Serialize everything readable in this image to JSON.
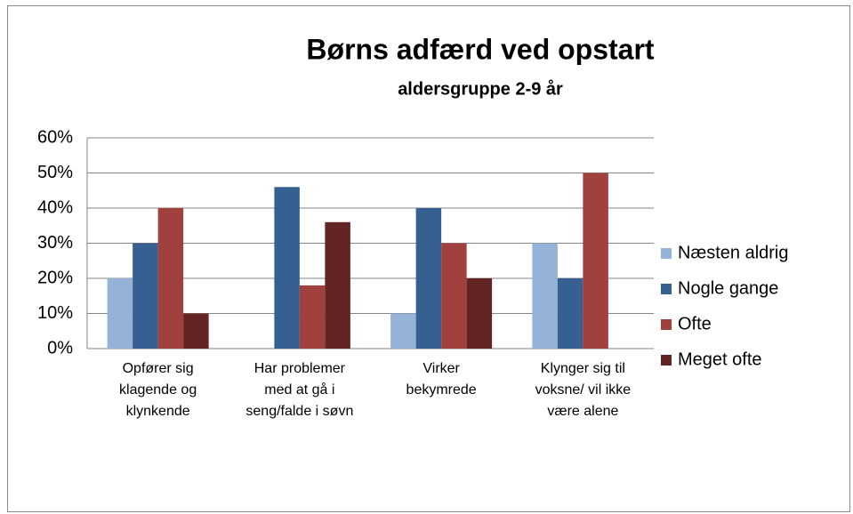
{
  "chart_data": {
    "type": "bar",
    "title": "Børns adfærd ved opstart",
    "subtitle": "aldersgruppe 2-9 år",
    "categories": [
      "Opfører sig klagende og klynkende",
      "Har problemer med at gå i seng/falde i søvn",
      "Virker bekymrede",
      "Klynger sig til voksne/ vil ikke være alene"
    ],
    "series": [
      {
        "name": "Næsten aldrig",
        "color": "#95b3d7",
        "values": [
          20,
          0,
          10,
          30
        ]
      },
      {
        "name": "Nogle gange",
        "color": "#376092",
        "values": [
          30,
          46,
          40,
          20
        ]
      },
      {
        "name": "Ofte",
        "color": "#a0413e",
        "values": [
          40,
          18,
          30,
          50
        ]
      },
      {
        "name": "Meget ofte",
        "color": "#632523",
        "values": [
          10,
          36,
          20,
          0
        ]
      }
    ],
    "ylim": [
      0,
      60
    ],
    "yticks": [
      {
        "value": 0,
        "label": "0%"
      },
      {
        "value": 10,
        "label": "10%"
      },
      {
        "value": 20,
        "label": "20%"
      },
      {
        "value": 30,
        "label": "30%"
      },
      {
        "value": 40,
        "label": "40%"
      },
      {
        "value": 50,
        "label": "50%"
      },
      {
        "value": 60,
        "label": "60%"
      }
    ],
    "grid": true,
    "legend": "right"
  }
}
